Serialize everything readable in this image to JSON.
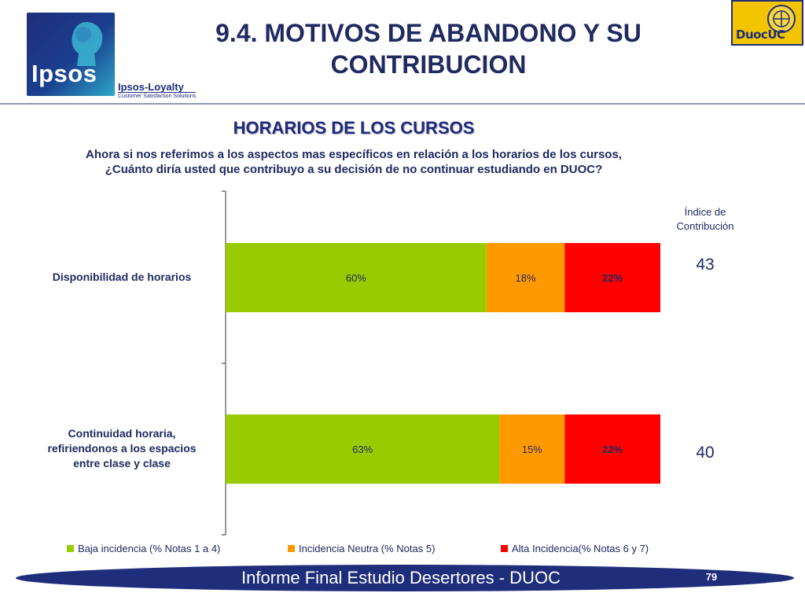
{
  "header": {
    "title_line1": "9.4. MOTIVOS DE ABANDONO Y SU",
    "title_line2": "CONTRIBUCION",
    "section_title": "HORARIOS DE LOS CURSOS",
    "question_line1": "Ahora si nos referimos a los aspectos mas específicos en relación a los horarios de los cursos,",
    "question_line2": "¿Cuánto diría usted que contribuyo a su decisión de no continuar estudiando en DUOC?"
  },
  "logos": {
    "ipsos_word": "Ipsos",
    "loyalty": "Ipsos-Loyalty",
    "loyalty_sub": "Customer Satisfaction Solutions",
    "duoc_word": "DuocUC"
  },
  "chart_data": {
    "type": "bar",
    "orientation": "horizontal",
    "stacked": true,
    "unit": "%",
    "xlim": [
      0,
      100
    ],
    "categories": [
      "Disponibilidad de horarios",
      "Continuidad horaria, refiriendonos a los espacios entre clase y clase"
    ],
    "category_lines": [
      [
        "Disponibilidad de horarios"
      ],
      [
        "Continuidad horaria,",
        "refiriendonos a los espacios",
        "entre clase y clase"
      ]
    ],
    "series": [
      {
        "name": "Baja incidencia (% Notas 1 a 4)",
        "color": "#99cc00",
        "values": [
          60,
          63
        ],
        "labels": [
          "60%",
          "63%"
        ]
      },
      {
        "name": "Incidencia Neutra (% Notas 5)",
        "color": "#ff9900",
        "values": [
          18,
          15
        ],
        "labels": [
          "18%",
          "15%"
        ]
      },
      {
        "name": "Alta Incidencia(% Notas 6 y 7)",
        "color": "#ff0000",
        "values": [
          22,
          22
        ],
        "labels": [
          "22%",
          "22%"
        ]
      }
    ],
    "legend_position": "bottom",
    "grid": false
  },
  "index": {
    "heading_line1": "Índice de",
    "heading_line2": "Contribución",
    "values": [
      "43",
      "40"
    ]
  },
  "footer": {
    "text": "Informe Final Estudio Desertores - DUOC",
    "page": "79"
  }
}
